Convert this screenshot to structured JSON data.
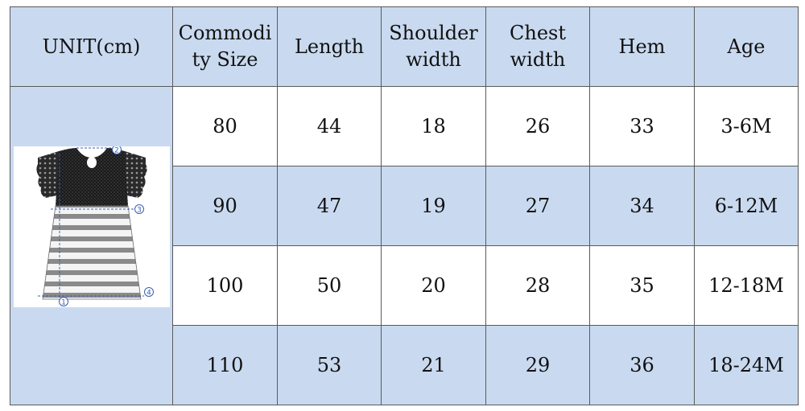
{
  "header": {
    "unit": "UNIT(cm)",
    "size_line1": "Commodi",
    "size_line2": "ty Size",
    "length": "Length",
    "shoulder_line1": "Shoulder",
    "shoulder_line2": "width",
    "chest_line1": "Chest",
    "chest_line2": "width",
    "hem": "Hem",
    "age": "Age"
  },
  "rows": [
    {
      "size": "80",
      "length": "44",
      "shoulder": "18",
      "chest": "26",
      "hem": "33",
      "age": "3-6M"
    },
    {
      "size": "90",
      "length": "47",
      "shoulder": "19",
      "chest": "27",
      "hem": "34",
      "age": "6-12M"
    },
    {
      "size": "100",
      "length": "50",
      "shoulder": "20",
      "chest": "28",
      "hem": "35",
      "age": "12-18M"
    },
    {
      "size": "110",
      "length": "53",
      "shoulder": "21",
      "chest": "29",
      "hem": "36",
      "age": "18-24M"
    }
  ],
  "diagram": {
    "marker_1": "1",
    "marker_2": "2",
    "marker_3": "3",
    "marker_4": "4"
  },
  "colors": {
    "header_blue": "#c9daf0",
    "row_white": "#ffffff",
    "border": "#5a5a5a"
  }
}
